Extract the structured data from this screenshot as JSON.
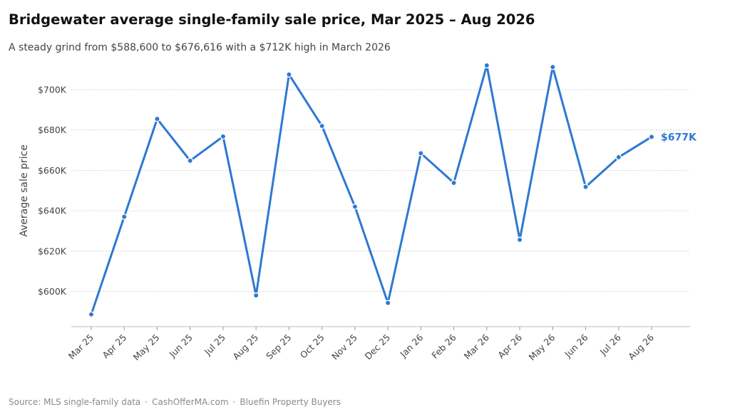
{
  "title": "Bridgewater average single-family sale price, Mar 2025 – Aug 2026",
  "subtitle": "A steady grind from $588,600 to $676,616 with a $712K high in March 2026",
  "footer": {
    "source": "Source: MLS single-family data",
    "site": "CashOfferMA.com",
    "brand": "Bluefin Property Buyers",
    "separator": "·"
  },
  "colors": {
    "line": "#2e78d2",
    "grid": "#c8c8c8",
    "axis": "#bbbbbb"
  },
  "chart_data": {
    "type": "line",
    "title": "Bridgewater average single-family sale price, Mar 2025 – Aug 2026",
    "xlabel": "",
    "ylabel": "Average sale price",
    "categories": [
      "Mar 25",
      "Apr 25",
      "May 25",
      "Jun 25",
      "Jul 25",
      "Aug 25",
      "Sep 25",
      "Oct 25",
      "Nov 25",
      "Dec 25",
      "Jan 26",
      "Feb 26",
      "Mar 26",
      "Apr 26",
      "May 26",
      "Jun 26",
      "Jul 26",
      "Aug 26"
    ],
    "values": [
      588600,
      637000,
      685500,
      664800,
      676800,
      598000,
      707500,
      682000,
      642000,
      594300,
      668500,
      653800,
      712000,
      625600,
      711200,
      651800,
      666500,
      676616
    ],
    "yticks": [
      600000,
      620000,
      640000,
      660000,
      680000,
      700000
    ],
    "ytick_labels": [
      "$600K",
      "$620K",
      "$640K",
      "$660K",
      "$680K",
      "$700K"
    ],
    "ylim": [
      583000,
      718000
    ],
    "end_label": "$677K",
    "grid": "horizontal dotted",
    "legend": "none"
  }
}
